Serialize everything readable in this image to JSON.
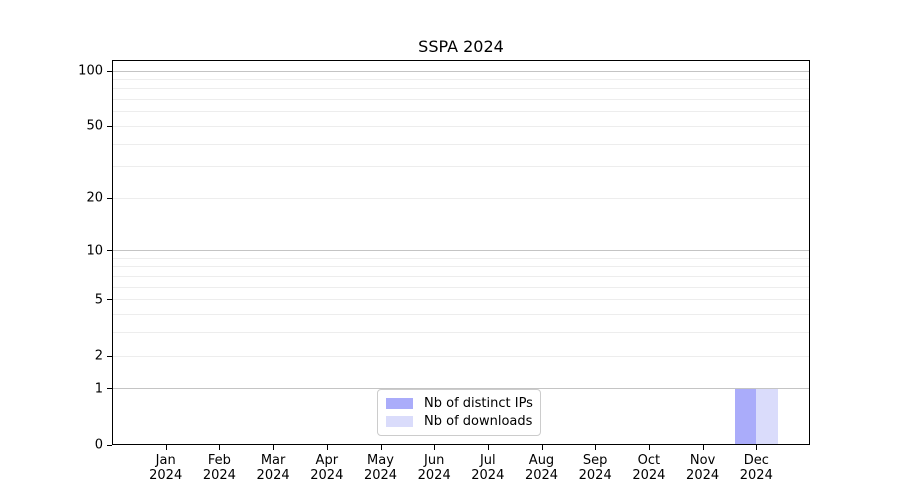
{
  "chart_data": {
    "type": "bar",
    "title": "SSPA 2024",
    "categories": [
      "Jan",
      "Feb",
      "Mar",
      "Apr",
      "May",
      "Jun",
      "Jul",
      "Aug",
      "Sep",
      "Oct",
      "Nov",
      "Dec"
    ],
    "category_year": "2024",
    "series": [
      {
        "name": "Nb of distinct IPs",
        "color": "#aaacfa",
        "values": [
          0,
          0,
          0,
          0,
          0,
          0,
          0,
          0,
          0,
          0,
          0,
          1
        ]
      },
      {
        "name": "Nb of downloads",
        "color": "#dadcfb",
        "values": [
          0,
          0,
          0,
          0,
          0,
          0,
          0,
          0,
          0,
          0,
          0,
          1
        ]
      }
    ],
    "yscale": "log1p",
    "yticks": [
      0,
      1,
      2,
      5,
      10,
      20,
      50,
      100
    ],
    "major_gridlines": [
      1,
      10,
      100
    ],
    "minor_gridlines": [
      2,
      3,
      4,
      5,
      6,
      7,
      8,
      9,
      20,
      30,
      40,
      50,
      60,
      70,
      80,
      90
    ],
    "ylim": [
      0,
      114
    ],
    "legend_position": "lower center",
    "grid": true
  },
  "colors": {
    "background": "#ffffff",
    "spine": "#000000",
    "major_grid": "#c4c4c4",
    "minor_grid": "#ededed",
    "text": "#000000",
    "legend_border": "#cccccc"
  }
}
